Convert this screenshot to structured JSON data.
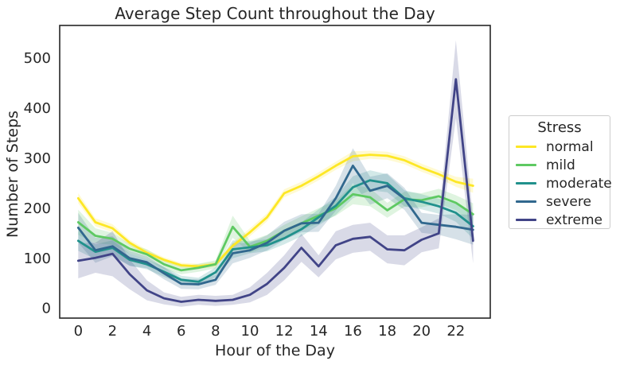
{
  "title": "Average Step Count throughout the Day",
  "xlabel": "Hour of the Day",
  "ylabel": "Number of Steps",
  "legend": {
    "title": "Stress",
    "entries": [
      {
        "label": "normal",
        "color": "#FDE725"
      },
      {
        "label": "mild",
        "color": "#5EC962"
      },
      {
        "label": "moderate",
        "color": "#21918C"
      },
      {
        "label": "severe",
        "color": "#31688E"
      },
      {
        "label": "extreme",
        "color": "#414487"
      }
    ]
  },
  "chart_data": {
    "type": "line",
    "title": "Average Step Count throughout the Day",
    "xlabel": "Hour of the Day",
    "ylabel": "Number of Steps",
    "x": [
      0,
      1,
      2,
      3,
      4,
      5,
      6,
      7,
      8,
      9,
      10,
      11,
      12,
      13,
      14,
      15,
      16,
      17,
      18,
      19,
      20,
      21,
      22,
      23
    ],
    "xticks": [
      0,
      2,
      4,
      6,
      8,
      10,
      12,
      14,
      16,
      18,
      20,
      22
    ],
    "yticks": [
      0,
      100,
      200,
      300,
      400,
      500
    ],
    "xlim": [
      -1.1,
      24.0
    ],
    "ylim": [
      -20,
      565
    ],
    "grid": false,
    "legend_position": "right-outside",
    "band_alpha": 0.2,
    "series": [
      {
        "name": "normal",
        "color": "#FDE725",
        "values": [
          220,
          172,
          160,
          131,
          111,
          97,
          86,
          84,
          88,
          125,
          152,
          182,
          230,
          245,
          264,
          285,
          304,
          307,
          305,
          296,
          281,
          268,
          253,
          245
        ],
        "ci": [
          10,
          8,
          8,
          6,
          6,
          5,
          5,
          5,
          5,
          6,
          8,
          8,
          8,
          8,
          8,
          8,
          10,
          8,
          8,
          8,
          8,
          8,
          10,
          14
        ]
      },
      {
        "name": "mild",
        "color": "#5EC962",
        "values": [
          172,
          145,
          139,
          119,
          108,
          88,
          76,
          81,
          88,
          163,
          123,
          135,
          155,
          170,
          185,
          200,
          228,
          222,
          196,
          218,
          216,
          224,
          211,
          188
        ],
        "ci": [
          25,
          15,
          12,
          10,
          10,
          10,
          8,
          8,
          8,
          22,
          12,
          12,
          12,
          14,
          15,
          15,
          20,
          18,
          15,
          15,
          14,
          15,
          15,
          22
        ]
      },
      {
        "name": "moderate",
        "color": "#21918C",
        "values": [
          135,
          113,
          121,
          97,
          88,
          73,
          57,
          53,
          72,
          118,
          122,
          126,
          140,
          158,
          182,
          205,
          242,
          256,
          250,
          220,
          213,
          204,
          191,
          164
        ],
        "ci": [
          20,
          15,
          15,
          12,
          10,
          10,
          8,
          8,
          10,
          18,
          12,
          12,
          12,
          14,
          16,
          18,
          22,
          20,
          18,
          16,
          15,
          15,
          18,
          25
        ]
      },
      {
        "name": "severe",
        "color": "#31688E",
        "values": [
          161,
          116,
          124,
          100,
          92,
          70,
          49,
          48,
          57,
          110,
          116,
          131,
          155,
          170,
          171,
          220,
          285,
          235,
          245,
          219,
          171,
          167,
          163,
          157
        ],
        "ci": [
          30,
          25,
          20,
          15,
          12,
          12,
          10,
          10,
          10,
          20,
          15,
          15,
          18,
          18,
          18,
          25,
          35,
          28,
          25,
          22,
          20,
          20,
          25,
          30
        ]
      },
      {
        "name": "extreme",
        "color": "#414487",
        "values": [
          95,
          101,
          109,
          68,
          36,
          20,
          13,
          17,
          15,
          17,
          27,
          49,
          81,
          121,
          84,
          126,
          139,
          143,
          118,
          116,
          137,
          150,
          458,
          135
        ],
        "ci": [
          35,
          30,
          45,
          30,
          20,
          12,
          10,
          10,
          10,
          10,
          15,
          22,
          25,
          28,
          22,
          28,
          28,
          28,
          28,
          30,
          25,
          30,
          78,
          45
        ]
      }
    ]
  }
}
